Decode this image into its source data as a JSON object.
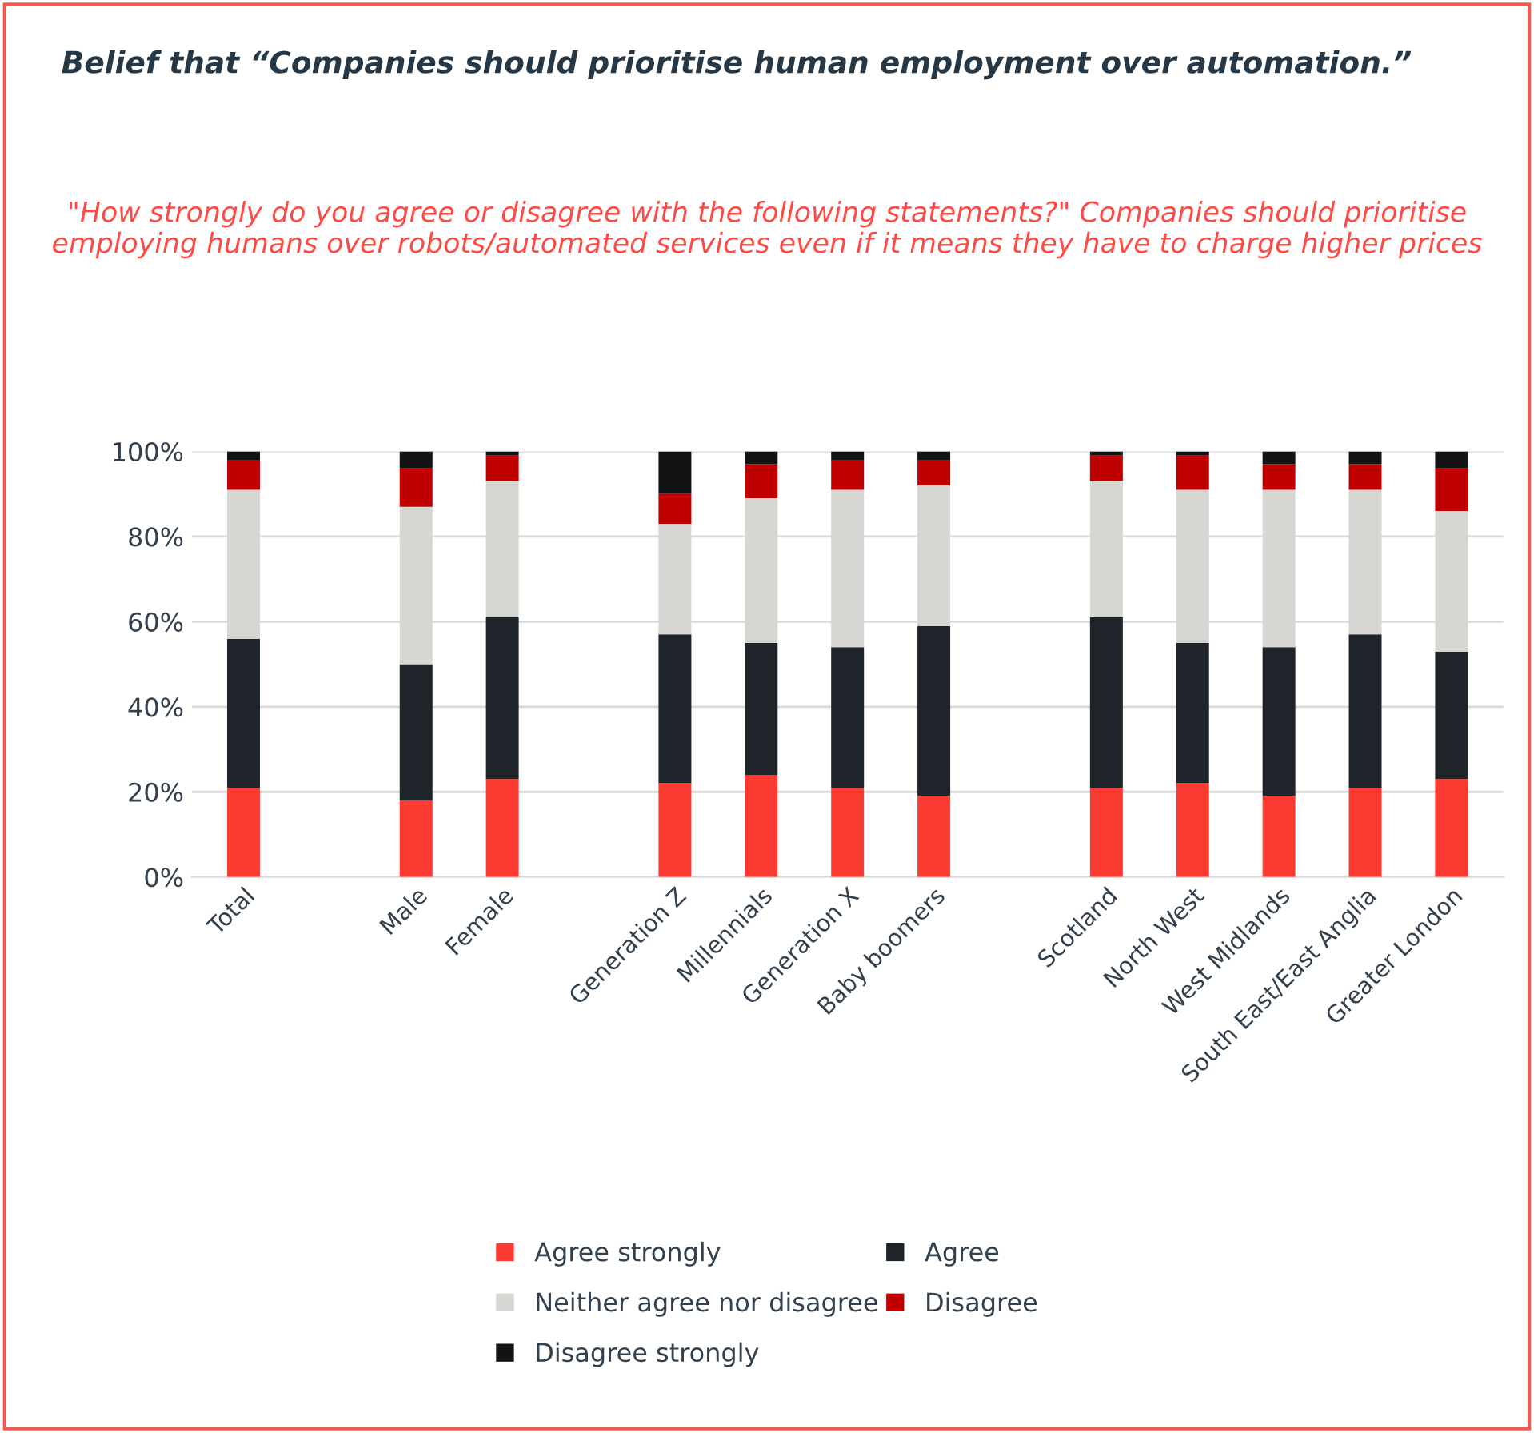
{
  "chart_data": {
    "type": "bar",
    "stacked": true,
    "title": "Belief that “Companies should prioritise human employment over automation.”",
    "subtitle": "\"How strongly do you agree or disagree with the following statements?\" Companies should prioritise employing humans over robots/automated services even if it means they have to charge higher prices",
    "categories": [
      "Total",
      null,
      "Male",
      "Female",
      null,
      "Generation Z",
      "Millennials",
      "Generation X",
      "Baby boomers",
      null,
      "Scotland",
      "North West",
      "West Midlands",
      "South East/East Anglia",
      "Greater London"
    ],
    "series": [
      {
        "name": "Agree strongly",
        "color": "#fb3a32",
        "values": [
          21,
          null,
          18,
          23,
          null,
          22,
          24,
          21,
          19,
          null,
          21,
          22,
          19,
          21,
          23
        ]
      },
      {
        "name": "Agree",
        "color": "#1e242a",
        "values": [
          35,
          null,
          32,
          38,
          null,
          35,
          31,
          33,
          40,
          null,
          40,
          33,
          35,
          36,
          30
        ]
      },
      {
        "name": "Neither agree nor disagree",
        "color": "#d6d6d2",
        "values": [
          35,
          null,
          37,
          32,
          null,
          26,
          34,
          37,
          33,
          null,
          32,
          36,
          37,
          34,
          33
        ]
      },
      {
        "name": "Disagree",
        "color": "#c00000",
        "values": [
          7,
          null,
          9,
          6,
          null,
          7,
          8,
          7,
          6,
          null,
          6,
          8,
          6,
          6,
          10
        ]
      },
      {
        "name": "Disagree strongly",
        "color": "#111315",
        "values": [
          2,
          null,
          4,
          1,
          null,
          10,
          3,
          2,
          2,
          null,
          1,
          1,
          3,
          3,
          4
        ]
      }
    ],
    "ylim": [
      0,
      100
    ],
    "yticks": [
      {
        "value": 0,
        "label": "0%"
      },
      {
        "value": 20,
        "label": "20%"
      },
      {
        "value": 40,
        "label": "40%"
      },
      {
        "value": 60,
        "label": "60%"
      },
      {
        "value": 80,
        "label": "80%"
      },
      {
        "value": 100,
        "label": "100%"
      }
    ],
    "grid": "y",
    "legend": "bottom"
  }
}
